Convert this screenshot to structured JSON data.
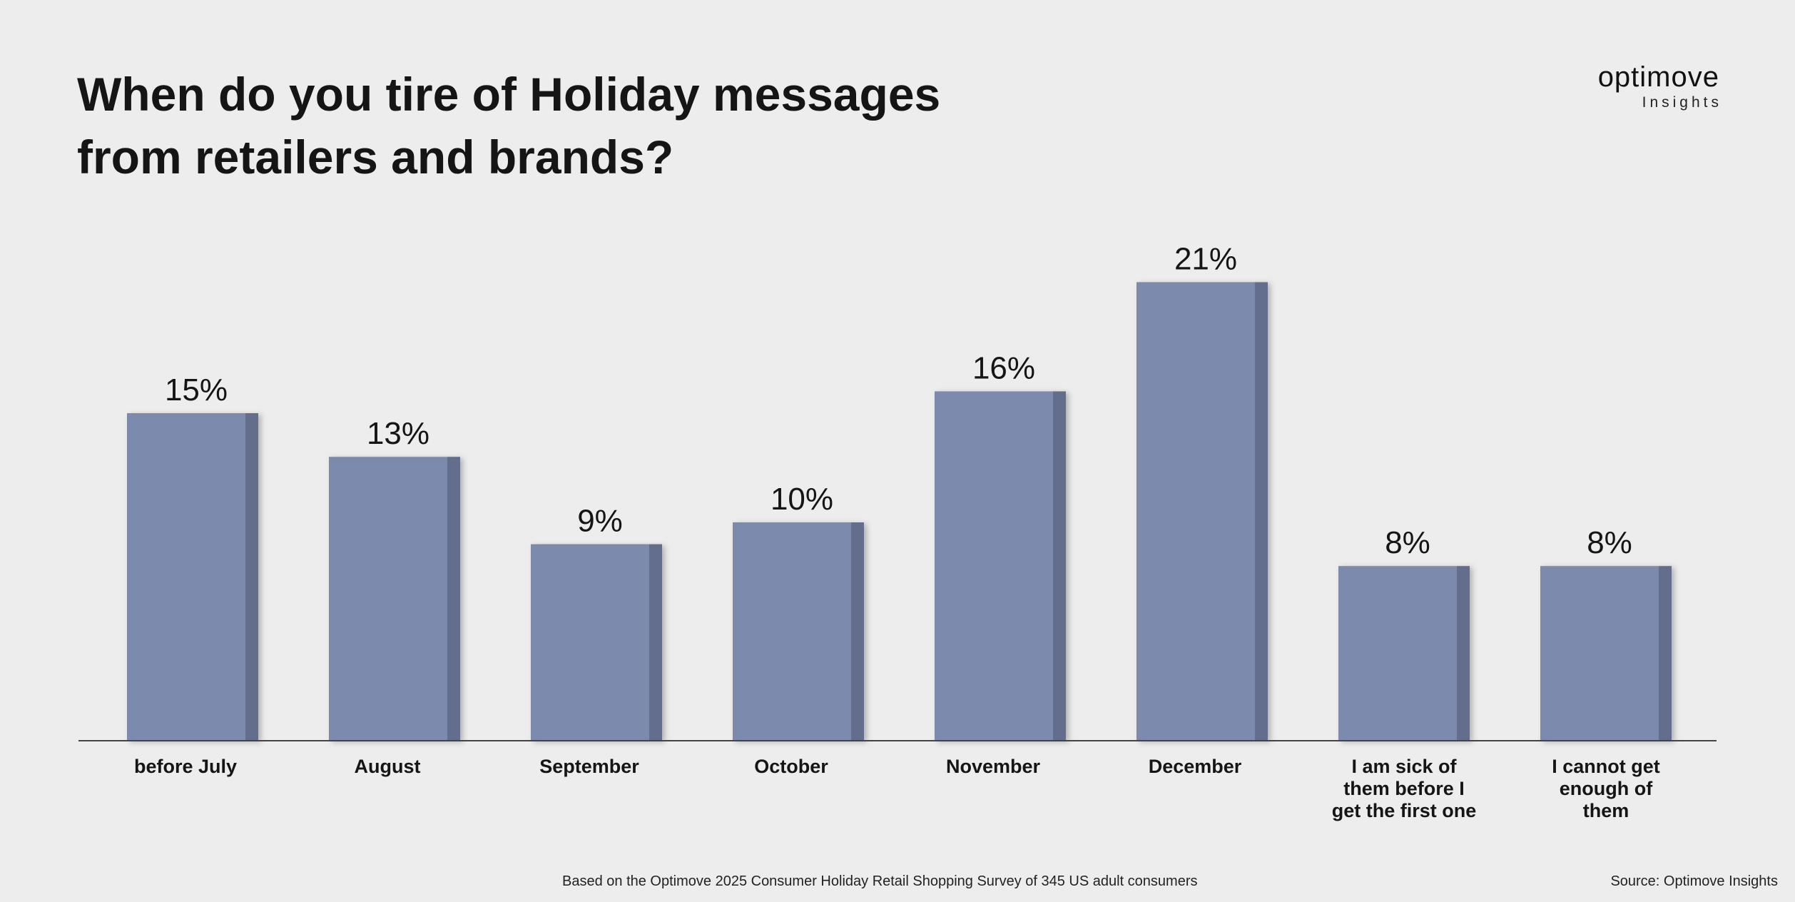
{
  "title_lines": [
    "When do you tire of Holiday messages",
    "from retailers and brands?"
  ],
  "logo": {
    "name": "optimove",
    "sub": "Insights"
  },
  "footnote": "Based on the Optimove 2025 Consumer Holiday Retail Shopping Survey of 345 US adult consumers",
  "source": "Source: Optimove Insights",
  "colors": {
    "bar": "#7c8aae",
    "bar_side": "#636e8c",
    "axis": "#444444",
    "background": "#ededed"
  },
  "chart_data": {
    "type": "bar",
    "title": "When do you tire of Holiday messages from retailers and brands?",
    "categories": [
      [
        "before July"
      ],
      [
        "August"
      ],
      [
        "September"
      ],
      [
        "October"
      ],
      [
        "November"
      ],
      [
        "December"
      ],
      [
        "I am sick of",
        "them before I",
        "get the first one"
      ],
      [
        "I cannot get",
        "enough of",
        "them"
      ]
    ],
    "values": [
      15,
      13,
      9,
      10,
      16,
      21,
      8,
      8
    ],
    "value_labels": [
      "15%",
      "13%",
      "9%",
      "10%",
      "16%",
      "21%",
      "8%",
      "8%"
    ],
    "unit": "%",
    "grid": false,
    "legend": "none"
  }
}
